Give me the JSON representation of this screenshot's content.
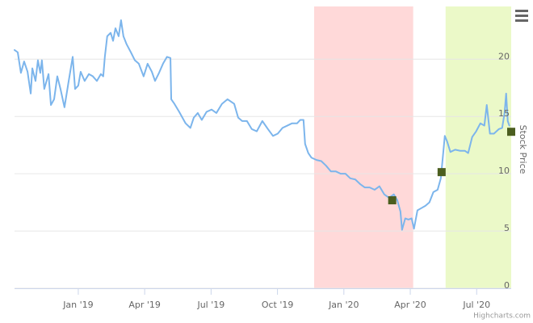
{
  "chart_data": {
    "type": "line",
    "y_axis_label": "Stock Price",
    "credits": "Highcharts.com",
    "xlim": [
      2018.76,
      2020.63
    ],
    "xticks": [
      {
        "value": 2019.0,
        "label": "Jan '19"
      },
      {
        "value": 2019.25,
        "label": "Apr '19"
      },
      {
        "value": 2019.5,
        "label": "Jul '19"
      },
      {
        "value": 2019.75,
        "label": "Oct '19"
      },
      {
        "value": 2020.0,
        "label": "Jan '20"
      },
      {
        "value": 2020.25,
        "label": "Apr '20"
      },
      {
        "value": 2020.5,
        "label": "Jul '20"
      }
    ],
    "ylim": [
      0,
      24.6
    ],
    "yticks": [
      0,
      5,
      10,
      15,
      20
    ],
    "grid": true,
    "y_axis_side": "right",
    "bands": [
      {
        "from": 2019.888,
        "to": 2020.261,
        "color": "#ffd9d9"
      },
      {
        "from": 2020.383,
        "to": 2020.63,
        "color": "#ebf9c8"
      }
    ],
    "series": [
      {
        "color": "#7cb5ec",
        "x": [
          2018.76,
          2018.772,
          2018.784,
          2018.796,
          2018.809,
          2018.821,
          2018.827,
          2018.839,
          2018.848,
          2018.857,
          2018.863,
          2018.872,
          2018.888,
          2018.897,
          2018.909,
          2018.921,
          2018.933,
          2018.948,
          2018.964,
          2018.979,
          2018.988,
          2019.0,
          2019.009,
          2019.024,
          2019.04,
          2019.055,
          2019.07,
          2019.085,
          2019.094,
          2019.1,
          2019.109,
          2019.122,
          2019.131,
          2019.14,
          2019.152,
          2019.161,
          2019.17,
          2019.182,
          2019.198,
          2019.213,
          2019.228,
          2019.246,
          2019.261,
          2019.277,
          2019.289,
          2019.304,
          2019.319,
          2019.334,
          2019.347,
          2019.35,
          2019.362,
          2019.38,
          2019.404,
          2019.422,
          2019.435,
          2019.45,
          2019.465,
          2019.483,
          2019.502,
          2019.52,
          2019.541,
          2019.562,
          2019.587,
          2019.602,
          2019.617,
          2019.635,
          2019.653,
          2019.672,
          2019.693,
          2019.714,
          2019.733,
          2019.751,
          2019.769,
          2019.787,
          2019.805,
          2019.824,
          2019.836,
          2019.848,
          2019.854,
          2019.866,
          2019.878,
          2019.897,
          2019.915,
          2019.933,
          2019.951,
          2019.97,
          2019.988,
          2020.006,
          2020.024,
          2020.043,
          2020.061,
          2020.079,
          2020.097,
          2020.116,
          2020.134,
          2020.152,
          2020.17,
          2020.188,
          2020.201,
          2020.213,
          2020.219,
          2020.231,
          2020.243,
          2020.255,
          2020.264,
          2020.277,
          2020.292,
          2020.307,
          2020.322,
          2020.337,
          2020.353,
          2020.365,
          2020.374,
          2020.38,
          2020.389,
          2020.401,
          2020.419,
          2020.438,
          2020.456,
          2020.468,
          2020.483,
          2020.498,
          2020.514,
          2020.529,
          2020.538,
          2020.55,
          2020.565,
          2020.584,
          2020.596,
          2020.605,
          2020.611,
          2020.617,
          2020.623
        ],
        "values": [
          20.8,
          20.6,
          18.8,
          19.8,
          18.9,
          17.0,
          19.2,
          18.1,
          19.9,
          18.8,
          19.9,
          17.4,
          18.7,
          16.0,
          16.5,
          18.5,
          17.4,
          15.8,
          18.1,
          20.2,
          17.4,
          17.7,
          18.9,
          18.1,
          18.7,
          18.5,
          18.1,
          18.7,
          18.5,
          20.2,
          22.0,
          22.3,
          21.6,
          22.7,
          22.0,
          23.4,
          22.0,
          21.3,
          20.6,
          19.9,
          19.6,
          18.5,
          19.6,
          18.9,
          18.1,
          18.8,
          19.6,
          20.2,
          20.1,
          16.5,
          16.1,
          15.4,
          14.4,
          14.0,
          14.9,
          15.3,
          14.7,
          15.4,
          15.6,
          15.3,
          16.1,
          16.5,
          16.1,
          14.9,
          14.6,
          14.6,
          13.9,
          13.7,
          14.6,
          13.9,
          13.3,
          13.5,
          14.0,
          14.2,
          14.4,
          14.4,
          14.7,
          14.7,
          12.6,
          11.8,
          11.4,
          11.2,
          11.1,
          10.7,
          10.2,
          10.2,
          10.0,
          10.0,
          9.6,
          9.5,
          9.1,
          8.8,
          8.8,
          8.6,
          8.9,
          8.2,
          7.9,
          8.2,
          7.7,
          6.7,
          5.1,
          6.1,
          6.0,
          6.1,
          5.2,
          6.8,
          7.0,
          7.2,
          7.5,
          8.4,
          8.6,
          9.6,
          11.8,
          13.3,
          12.8,
          11.9,
          12.1,
          12.0,
          12.0,
          11.8,
          13.2,
          13.7,
          14.4,
          14.2,
          16.0,
          13.5,
          13.5,
          13.9,
          14.0,
          15.3,
          17.0,
          14.6,
          14.2
        ]
      }
    ],
    "markers": {
      "color": "#4b5e1f",
      "x": [
        2020.182,
        2020.368,
        2020.63
      ],
      "values": [
        7.68,
        10.14,
        13.66
      ]
    }
  }
}
